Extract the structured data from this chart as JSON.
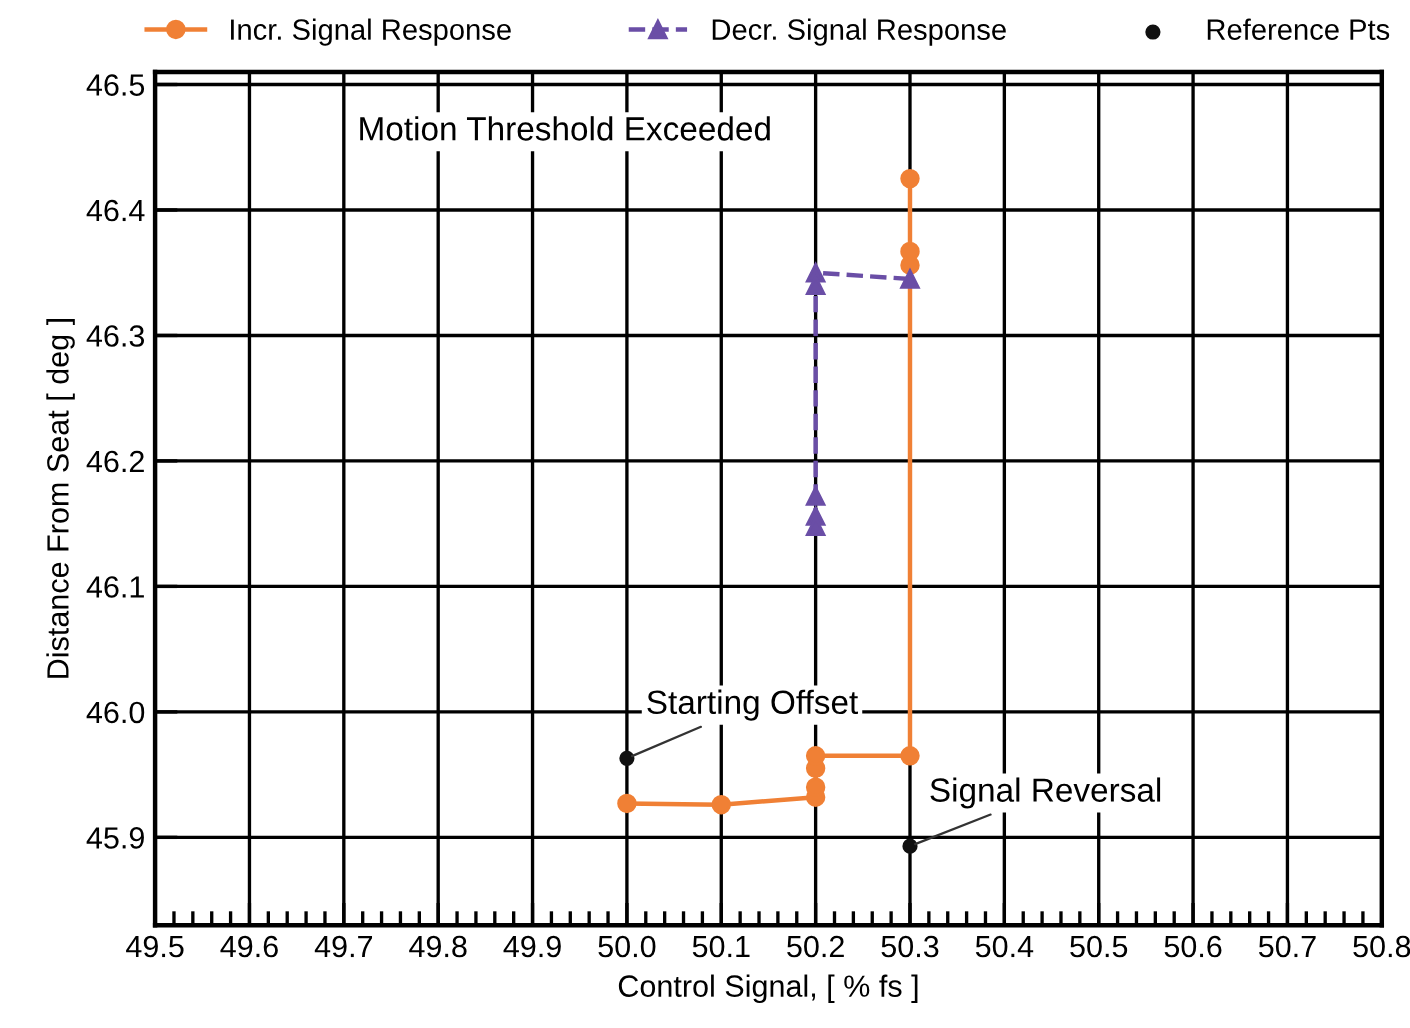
{
  "chart_data": {
    "type": "line",
    "xlabel": "Control Signal, [ % fs ]",
    "ylabel": "Distance From Seat [ deg ]",
    "xlim": [
      49.5,
      50.8
    ],
    "xticks": [
      {
        "value": 49.5,
        "label": "49.5"
      },
      {
        "value": 49.6,
        "label": "49.6"
      },
      {
        "value": 49.7,
        "label": "49.7"
      },
      {
        "value": 49.8,
        "label": "49.8"
      },
      {
        "value": 49.9,
        "label": "49.9"
      },
      {
        "value": 50.0,
        "label": "50.0"
      },
      {
        "value": 50.1,
        "label": "50.1"
      },
      {
        "value": 50.2,
        "label": "50.2"
      },
      {
        "value": 50.3,
        "label": "50.3"
      },
      {
        "value": 50.4,
        "label": "50.4"
      },
      {
        "value": 50.5,
        "label": "50.5"
      },
      {
        "value": 50.6,
        "label": "50.6"
      },
      {
        "value": 50.7,
        "label": "50.7"
      },
      {
        "value": 50.8,
        "label": "50.8"
      }
    ],
    "ylim": [
      45.83,
      46.51
    ],
    "yticks": [
      {
        "value": 45.9,
        "label": "45.9"
      },
      {
        "value": 46.0,
        "label": "46.0"
      },
      46.1,
      46.2,
      46.3,
      46.4,
      46.5
    ],
    "grid": true,
    "legend": "top",
    "series": [
      {
        "name": "Incr. Signal Response",
        "color": "#f08035",
        "marker": "circle",
        "line_style": "solid",
        "x": [
          50.0,
          50.1,
          50.2,
          50.2,
          50.2,
          50.2,
          50.3,
          50.3,
          50.3,
          50.3
        ],
        "values": [
          45.927,
          45.926,
          45.932,
          45.94,
          45.955,
          45.965,
          45.965,
          46.356,
          46.367,
          46.425
        ]
      },
      {
        "name": "Decr. Signal Response",
        "color": "#6a4ea6",
        "marker": "triangle",
        "line_style": "dashed",
        "x": [
          50.3,
          50.2,
          50.2,
          50.2,
          50.2,
          50.2
        ],
        "values": [
          46.345,
          46.35,
          46.34,
          46.172,
          46.156,
          46.148
        ]
      },
      {
        "name": "Reference Pts",
        "color": "#111111",
        "type": "scatter",
        "marker": "circle",
        "x": [
          50.0,
          50.3
        ],
        "values": [
          45.963,
          45.893
        ]
      }
    ],
    "annotations": [
      "Motion Threshold Exceeded",
      {
        "text": "Starting Offset",
        "x": 50.0,
        "y": 45.963
      },
      {
        "text": "Signal Reversal",
        "x": 50.3,
        "y": 45.893
      }
    ]
  }
}
